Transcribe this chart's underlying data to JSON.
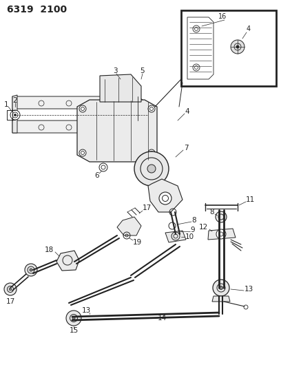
{
  "title": "6319  2100",
  "bg_color": "#ffffff",
  "lc": "#222222",
  "fig_width": 4.08,
  "fig_height": 5.33,
  "dpi": 100,
  "label_fs": 7.5,
  "title_fs": 10
}
